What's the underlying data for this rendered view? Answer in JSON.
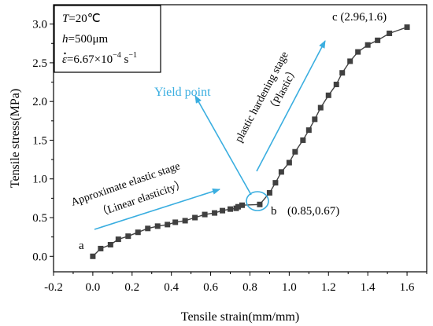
{
  "chart_data": {
    "type": "line",
    "xlabel": "Tensile strain(mm/mm)",
    "ylabel": "Tensile stress(MPa)",
    "xlim": [
      -0.2,
      1.7
    ],
    "ylim": [
      -0.2,
      3.25
    ],
    "xticks": [
      "-0.2",
      "0.0",
      "0.2",
      "0.4",
      "0.6",
      "0.8",
      "1.0",
      "1.2",
      "1.4",
      "1.6"
    ],
    "yticks": [
      "0.0",
      "0.5",
      "1.0",
      "1.5",
      "2.0",
      "2.5",
      "3.0"
    ],
    "grid": false,
    "line_color": "#404040",
    "marker": "square",
    "series": [
      {
        "x": [
          0.0,
          0.04,
          0.09,
          0.13,
          0.18,
          0.23,
          0.28,
          0.33,
          0.38,
          0.42,
          0.47,
          0.52,
          0.57,
          0.62,
          0.66,
          0.7,
          0.73,
          0.74,
          0.76,
          0.85,
          0.9,
          0.93,
          0.96,
          1.0,
          1.03,
          1.07,
          1.1,
          1.13,
          1.16,
          1.2,
          1.24,
          1.27,
          1.31,
          1.35,
          1.4,
          1.45,
          1.51,
          1.6
        ],
        "y": [
          0.0,
          0.1,
          0.15,
          0.22,
          0.26,
          0.31,
          0.36,
          0.39,
          0.41,
          0.44,
          0.46,
          0.5,
          0.54,
          0.56,
          0.59,
          0.61,
          0.62,
          0.64,
          0.66,
          0.67,
          0.82,
          0.95,
          1.09,
          1.21,
          1.35,
          1.5,
          1.63,
          1.77,
          1.92,
          2.08,
          2.22,
          2.37,
          2.52,
          2.64,
          2.73,
          2.79,
          2.88,
          2.96
        ]
      }
    ],
    "annotations": {
      "point_a": "a",
      "point_b_letter": "b",
      "point_b_coords": "(0.85,0.67)",
      "point_c": "c (2.96,1.6)",
      "yield_point": "Yield point",
      "elastic_stage_1": "Approximate elastic stage",
      "elastic_stage_2": "（Linear elasticity）",
      "plastic_stage_1": "plastic hardening stage",
      "plastic_stage_2": "（Plastic）"
    },
    "conditions": {
      "temperature_sym": "T",
      "temperature_val": "=20℃",
      "thickness_sym": "h",
      "thickness_val": "=500μm",
      "strain_rate_sym": "ε",
      "strain_rate_val": "=6.67×10",
      "strain_rate_exp": "−4",
      "strain_rate_unit": " s",
      "strain_rate_unit_exp": "−1"
    },
    "arrow_color": "#3aaee0"
  }
}
